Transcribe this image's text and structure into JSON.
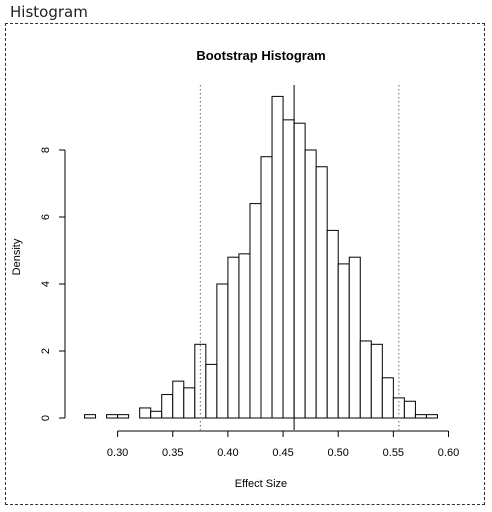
{
  "panel": {
    "title": "Histogram"
  },
  "chart_data": {
    "type": "bar",
    "title": "Bootstrap Histogram",
    "xlabel": "Effect Size",
    "ylabel": "Density",
    "xlim": [
      0.265,
      0.595
    ],
    "ylim": [
      0,
      10
    ],
    "bin_width": 0.01,
    "bin_starts": [
      0.27,
      0.28,
      0.29,
      0.3,
      0.31,
      0.32,
      0.33,
      0.34,
      0.35,
      0.36,
      0.37,
      0.38,
      0.39,
      0.4,
      0.41,
      0.42,
      0.43,
      0.44,
      0.45,
      0.46,
      0.47,
      0.48,
      0.49,
      0.5,
      0.51,
      0.52,
      0.53,
      0.54,
      0.55,
      0.56,
      0.57,
      0.58
    ],
    "values": [
      0.1,
      0.0,
      0.1,
      0.1,
      0.0,
      0.3,
      0.2,
      0.7,
      1.1,
      0.9,
      2.2,
      1.6,
      4.0,
      4.8,
      4.9,
      6.4,
      7.8,
      9.6,
      8.9,
      8.8,
      8.0,
      7.5,
      5.6,
      4.6,
      4.8,
      2.3,
      2.2,
      1.2,
      0.6,
      0.5,
      0.1,
      0.1
    ],
    "x_ticks": [
      0.3,
      0.35,
      0.4,
      0.45,
      0.5,
      0.55,
      0.6
    ],
    "x_tick_labels": [
      "0.30",
      "0.35",
      "0.40",
      "0.45",
      "0.50",
      "0.55",
      "0.60"
    ],
    "y_ticks": [
      0,
      2,
      4,
      6,
      8
    ],
    "y_tick_labels": [
      "0",
      "2",
      "4",
      "6",
      "8"
    ],
    "reference_lines": [
      {
        "x": 0.375,
        "style": "dotted"
      },
      {
        "x": 0.46,
        "style": "solid"
      },
      {
        "x": 0.555,
        "style": "dotted"
      }
    ],
    "grid": false,
    "legend": "none"
  }
}
